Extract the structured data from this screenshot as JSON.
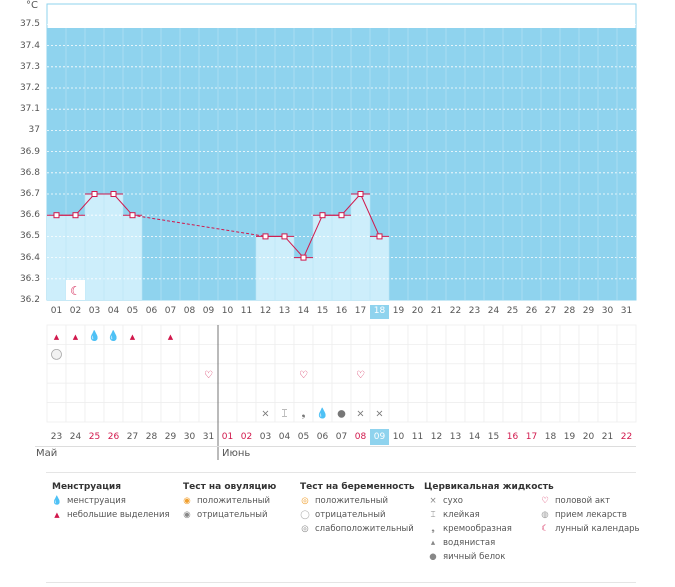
{
  "chart_data": {
    "type": "line",
    "unit": "°C",
    "y_ticks": [
      "37.5",
      "37.4",
      "37.3",
      "37.2",
      "37.1",
      "37",
      "36.9",
      "36.8",
      "36.7",
      "36.6",
      "36.5",
      "36.4",
      "36.3",
      "36.2"
    ],
    "ylim": [
      36.2,
      37.6
    ],
    "days": [
      "01",
      "02",
      "03",
      "04",
      "05",
      "06",
      "07",
      "08",
      "09",
      "10",
      "11",
      "12",
      "13",
      "14",
      "15",
      "16",
      "17",
      "18",
      "19",
      "20",
      "21",
      "22",
      "23",
      "24",
      "25",
      "26",
      "27",
      "28",
      "29",
      "30",
      "31"
    ],
    "selected_day": "18",
    "temperatures": [
      36.6,
      36.6,
      36.7,
      36.7,
      36.6,
      null,
      null,
      null,
      null,
      null,
      null,
      36.5,
      36.5,
      36.4,
      36.6,
      36.6,
      36.7,
      36.5,
      null,
      null,
      null,
      null,
      null,
      null,
      null,
      null,
      null,
      null,
      null,
      null,
      null
    ],
    "grid": true
  },
  "markers": {
    "moon_day_index": 1,
    "menstruation": [
      {
        "day_index": 0,
        "kind": "light"
      },
      {
        "day_index": 1,
        "kind": "light"
      },
      {
        "day_index": 2,
        "kind": "heavy"
      },
      {
        "day_index": 3,
        "kind": "heavy"
      },
      {
        "day_index": 4,
        "kind": "light"
      },
      {
        "day_index": 6,
        "kind": "light"
      }
    ],
    "pregnancy_neg_day_index": 0,
    "intercourse_days": [
      8,
      13,
      16
    ],
    "cervical": [
      {
        "day_index": 11,
        "glyph": "×"
      },
      {
        "day_index": 12,
        "glyph": "⌶"
      },
      {
        "day_index": 13,
        "glyph": "❟"
      },
      {
        "day_index": 14,
        "glyph": "💧"
      },
      {
        "day_index": 15,
        "glyph": "●"
      },
      {
        "day_index": 16,
        "glyph": "×"
      },
      {
        "day_index": 17,
        "glyph": "×"
      }
    ]
  },
  "cycle_days": [
    "23",
    "24",
    "25",
    "26",
    "27",
    "28",
    "29",
    "30",
    "31",
    "01",
    "02",
    "03",
    "04",
    "05",
    "06",
    "07",
    "08",
    "09",
    "10",
    "11",
    "12",
    "13",
    "14",
    "15",
    "16",
    "17",
    "18",
    "19",
    "20",
    "21",
    "22"
  ],
  "cycle_red": [
    2,
    3,
    9,
    10,
    16,
    24,
    25,
    30
  ],
  "cycle_selected": 17,
  "months": {
    "may": "Май",
    "june": "Июнь"
  },
  "legend": {
    "menstruation": {
      "title": "Менструация",
      "items": [
        "менструация",
        "небольшие выделения"
      ]
    },
    "ovulation": {
      "title": "Тест на овуляцию",
      "items": [
        "положительный",
        "отрицательный"
      ]
    },
    "pregnancy": {
      "title": "Тест на беременность",
      "items": [
        "положительный",
        "отрицательный",
        "слабоположительный"
      ]
    },
    "cervical": {
      "title": "Цервикальная жидкость",
      "items": [
        "сухо",
        "клейкая",
        "кремообразная",
        "водянистая",
        "яичный белок"
      ]
    },
    "other": {
      "items": [
        "половой акт",
        "прием лекарств",
        "лунный календарь"
      ]
    }
  },
  "colors": {
    "plot_bg": "#8fd3ee",
    "bar_fill": "#cdeefb",
    "line": "#d1184c",
    "accent": "#d1184c"
  }
}
